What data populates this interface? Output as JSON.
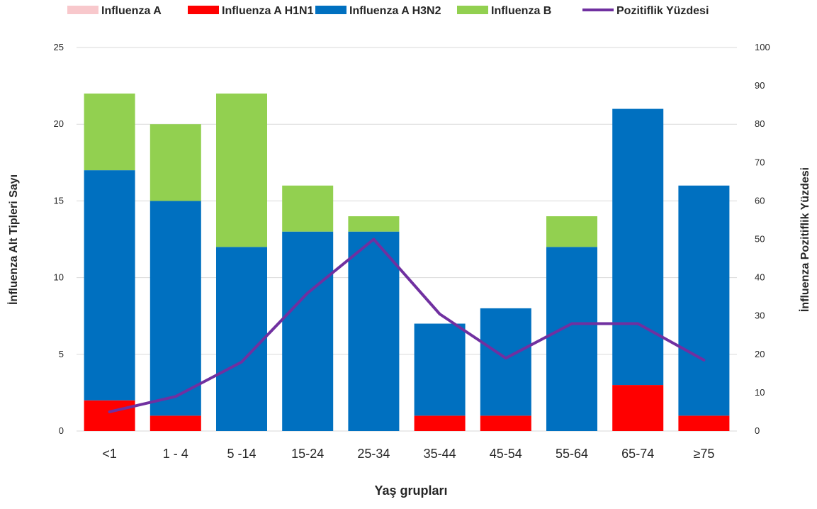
{
  "chart_data": {
    "type": "bar",
    "stacked": true,
    "categories": [
      "<1",
      "1 - 4",
      "5 -14",
      "15-24",
      "25-34",
      "35-44",
      "45-54",
      "55-64",
      "65-74",
      "≥75"
    ],
    "series": [
      {
        "name": "Influenza A",
        "kind": "bar",
        "color": "#f8c8cc",
        "values": [
          0,
          0,
          0,
          0,
          0,
          0,
          0,
          0,
          0,
          0
        ]
      },
      {
        "name": "Influenza A H1N1",
        "kind": "bar",
        "color": "#ff0000",
        "values": [
          2,
          1,
          0,
          0,
          0,
          1,
          1,
          0,
          3,
          1
        ]
      },
      {
        "name": "Influenza A H3N2",
        "kind": "bar",
        "color": "#0070c0",
        "values": [
          15,
          14,
          12,
          13,
          13,
          6,
          7,
          12,
          18,
          15
        ]
      },
      {
        "name": "Influenza B",
        "kind": "bar",
        "color": "#92d050",
        "values": [
          5,
          5,
          10,
          3,
          1,
          0,
          0,
          2,
          0,
          0
        ]
      },
      {
        "name": "Pozitiflik Yüzdesi",
        "kind": "line",
        "axis": "right",
        "color": "#7030a0",
        "values": [
          5,
          9,
          18,
          36,
          50,
          30.5,
          19,
          28,
          28,
          18.5
        ]
      }
    ],
    "xlabel": "Yaş grupları",
    "ylabel": "İnfluenza Alt Tipleri Sayı",
    "y2label": "İnfluenza Pozitiflik Yüzdesi",
    "ylim": [
      0,
      25
    ],
    "y2lim": [
      0,
      100
    ],
    "yticks": [
      "0",
      "5",
      "10",
      "15",
      "20",
      "25"
    ],
    "y2ticks": [
      "0",
      "10",
      "20",
      "30",
      "40",
      "50",
      "60",
      "70",
      "80",
      "90",
      "100"
    ],
    "grid": true,
    "legend": "top"
  }
}
